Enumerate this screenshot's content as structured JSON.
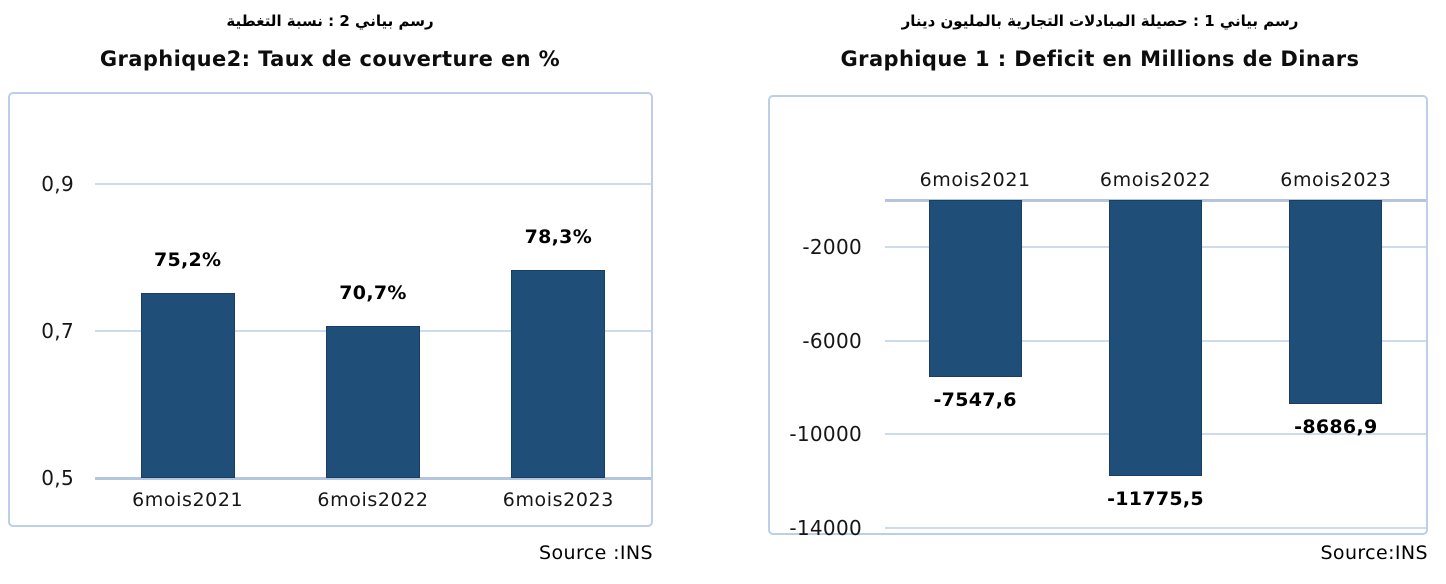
{
  "page": {
    "background": "#ffffff"
  },
  "colors": {
    "bar": "#1F4E79",
    "bar_border": "#17375E",
    "gridline": "#CEDBEC",
    "axis_line": "#B4C6DE",
    "frame_border": "#BCCFE6",
    "text": "#000000"
  },
  "chart_data": [
    {
      "type": "bar",
      "title": "Graphique2: Taux de couverture en %",
      "title_arabic": "رسم بياني 2 : نسبة التغطية",
      "source": "Source :INS",
      "categories": [
        "6mois2021",
        "6mois2022",
        "6mois2023"
      ],
      "values": [
        0.752,
        0.707,
        0.783
      ],
      "value_labels": [
        "75,2%",
        "70,7%",
        "78,3%"
      ],
      "baseline": 0.5,
      "ylim": [
        0.5,
        1.02
      ],
      "grid": true,
      "legend": "none",
      "bar_color": "#1F4E79",
      "yticks": [
        {
          "value": 0.9,
          "label": "0,9",
          "axis": false
        },
        {
          "value": 0.7,
          "label": "0,7",
          "axis": false
        },
        {
          "value": 0.5,
          "label": "0,5",
          "axis": true
        }
      ]
    },
    {
      "type": "bar",
      "title": "Graphique 1 : Deficit en Millions de Dinars",
      "title_arabic": "رسم بياني 1 : حصيلة المبادلات التجارية بالمليون دينار",
      "source": "Source:INS",
      "categories": [
        "6mois2021",
        "6mois2022",
        "6mois2023"
      ],
      "values": [
        -7547.6,
        -11775.5,
        -8686.9
      ],
      "value_labels": [
        "-7547,6",
        "-11775,5",
        "-8686,9"
      ],
      "baseline": 0,
      "ylim": [
        -14300,
        0
      ],
      "grid": true,
      "legend": "none",
      "bar_color": "#1F4E79",
      "yticks": [
        {
          "value": 0,
          "label": "",
          "axis": true
        },
        {
          "value": -2000,
          "label": "-2000",
          "axis": false
        },
        {
          "value": -6000,
          "label": "-6000",
          "axis": false
        },
        {
          "value": -10000,
          "label": "-10000",
          "axis": false
        },
        {
          "value": -14000,
          "label": "-14000",
          "axis": false
        }
      ]
    }
  ]
}
